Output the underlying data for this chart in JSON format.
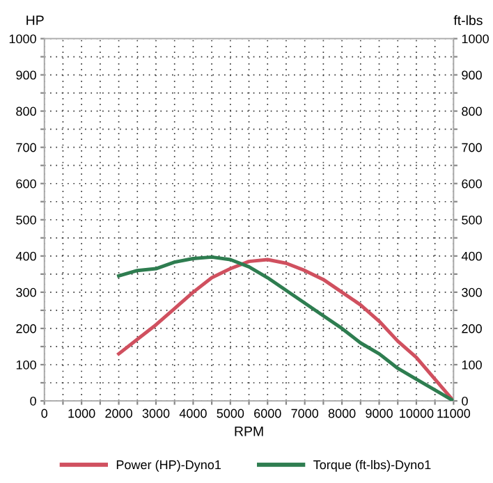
{
  "chart_data": {
    "type": "line",
    "xlabel": "RPM",
    "ylabel": "HP",
    "y2label": "ft-lbs",
    "x": [
      2000,
      2500,
      3000,
      3500,
      4000,
      4500,
      5000,
      5500,
      6000,
      6500,
      7000,
      7500,
      8000,
      8500,
      9000,
      9500,
      10000,
      10500,
      11000
    ],
    "series": [
      {
        "name": "Power (HP)-Dyno1",
        "color": "#d0505f",
        "values": [
          130,
          170,
          210,
          255,
          300,
          340,
          365,
          385,
          390,
          380,
          360,
          335,
          300,
          265,
          220,
          165,
          120,
          60,
          0
        ]
      },
      {
        "name": "Torque (ft-lbs)-Dyno1",
        "color": "#2e7d50",
        "axis": "y2",
        "values": [
          345,
          360,
          365,
          383,
          393,
          397,
          390,
          370,
          340,
          305,
          270,
          235,
          200,
          160,
          130,
          90,
          60,
          30,
          0
        ]
      }
    ],
    "xlim": [
      0,
      11000
    ],
    "xticks": [
      0,
      {
        "value": 500,
        "label": null
      },
      1000,
      {
        "value": 1500,
        "label": null
      },
      2000,
      {
        "value": 2500,
        "label": null
      },
      3000,
      {
        "value": 3500,
        "label": null
      },
      4000,
      {
        "value": 4500,
        "label": null
      },
      5000,
      {
        "value": 5500,
        "label": null
      },
      6000,
      {
        "value": 6500,
        "label": null
      },
      7000,
      {
        "value": 7500,
        "label": null
      },
      8000,
      {
        "value": 8500,
        "label": null
      },
      9000,
      {
        "value": 9500,
        "label": null
      },
      10000,
      {
        "value": 10500,
        "label": null
      },
      11000
    ],
    "ylim": [
      0,
      1000
    ],
    "yticks": [
      0,
      {
        "value": 50,
        "label": null
      },
      100,
      {
        "value": 150,
        "label": null
      },
      200,
      {
        "value": 250,
        "label": null
      },
      300,
      {
        "value": 350,
        "label": null
      },
      400,
      {
        "value": 450,
        "label": null
      },
      500,
      {
        "value": 550,
        "label": null
      },
      600,
      {
        "value": 650,
        "label": null
      },
      700,
      {
        "value": 750,
        "label": null
      },
      800,
      {
        "value": 850,
        "label": null
      },
      900,
      {
        "value": 950,
        "label": null
      },
      1000
    ],
    "y2lim": [
      0,
      1000
    ],
    "y2ticks": [
      0,
      {
        "value": 50,
        "label": null
      },
      100,
      {
        "value": 150,
        "label": null
      },
      200,
      {
        "value": 250,
        "label": null
      },
      300,
      {
        "value": 350,
        "label": null
      },
      400,
      {
        "value": 450,
        "label": null
      },
      500,
      {
        "value": 550,
        "label": null
      },
      600,
      {
        "value": 650,
        "label": null
      },
      700,
      {
        "value": 750,
        "label": null
      },
      800,
      {
        "value": 850,
        "label": null
      },
      900,
      {
        "value": 950,
        "label": null
      },
      1000
    ],
    "grid": true,
    "legend": "bottom",
    "marker": "none",
    "line_style": "solid"
  }
}
